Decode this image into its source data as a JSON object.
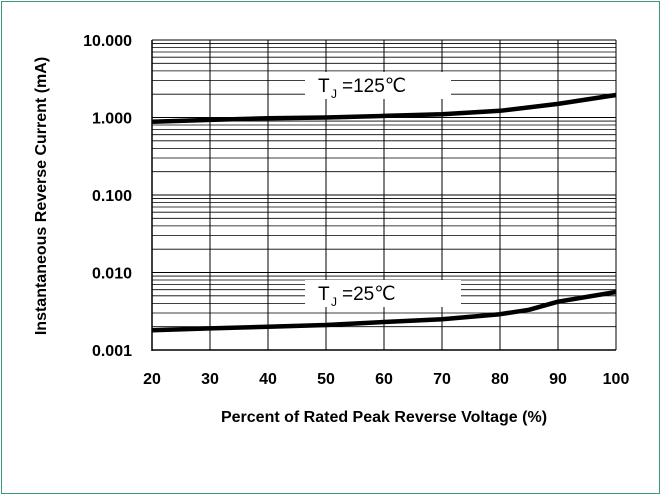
{
  "chart_data": {
    "type": "line",
    "title": "",
    "xlabel": "Percent of Rated Peak Reverse Voltage (%)",
    "ylabel": "Instantaneous Reverse Current (mA)",
    "x_ticks": [
      "20",
      "30",
      "40",
      "50",
      "60",
      "70",
      "80",
      "90",
      "100"
    ],
    "y_ticks": [
      "10.000",
      "1.000",
      "0.100",
      "0.010",
      "0.001"
    ],
    "xlim": [
      20,
      100
    ],
    "ylim": [
      0.001,
      10
    ],
    "y_scale": "log",
    "grid": true,
    "series": [
      {
        "name": "TJ=125℃",
        "label_main": "T",
        "label_sub": "J",
        "label_rest": "=125℃",
        "x": [
          20,
          30,
          40,
          50,
          60,
          70,
          80,
          90,
          100
        ],
        "y": [
          0.88,
          0.93,
          0.98,
          1.0,
          1.05,
          1.1,
          1.22,
          1.5,
          1.95
        ]
      },
      {
        "name": "TJ=25℃",
        "label_main": "T",
        "label_sub": "J",
        "label_rest": "=25℃",
        "x": [
          20,
          30,
          40,
          50,
          60,
          70,
          80,
          85,
          90,
          100
        ],
        "y": [
          0.0018,
          0.0019,
          0.002,
          0.0021,
          0.0023,
          0.0025,
          0.0029,
          0.0033,
          0.0042,
          0.0056
        ]
      }
    ],
    "line_color": "#000000",
    "frame_color": "#3a9a78"
  }
}
